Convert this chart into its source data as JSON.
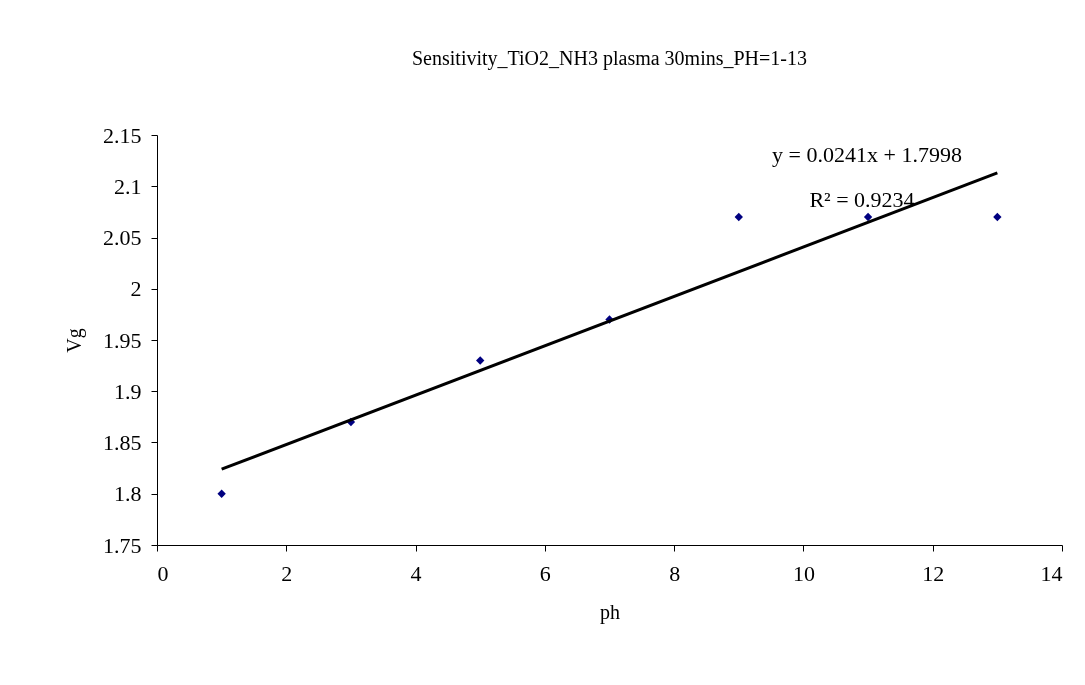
{
  "chart_data": {
    "type": "scatter",
    "title": "Sensitivity_TiO2_NH3 plasma 30mins_PH=1-13",
    "xlabel": "ph",
    "ylabel": "Vg",
    "x": [
      1,
      3,
      5,
      7,
      9,
      11,
      13
    ],
    "series": [
      {
        "color": "#000080",
        "marker": "diamond",
        "values": [
          1.8,
          1.87,
          1.93,
          1.97,
          2.07,
          2.07,
          2.07
        ]
      },
      {
        "type": "line",
        "color": "#000000",
        "marker": "none",
        "line_style": "solid",
        "x": [
          1,
          13
        ],
        "values": [
          1.824,
          2.113
        ]
      }
    ],
    "annotations": [
      "y = 0.0241x + 1.7998",
      "R² = 0.9234"
    ],
    "xlim": [
      0,
      14
    ],
    "xticks": [
      0,
      2,
      4,
      6,
      8,
      10,
      12,
      14
    ],
    "ylim": [
      1.75,
      2.15
    ],
    "yticks": [
      1.75,
      1.8,
      1.85,
      1.9,
      1.95,
      2,
      2.05,
      2.1,
      2.15
    ],
    "grid": false
  }
}
